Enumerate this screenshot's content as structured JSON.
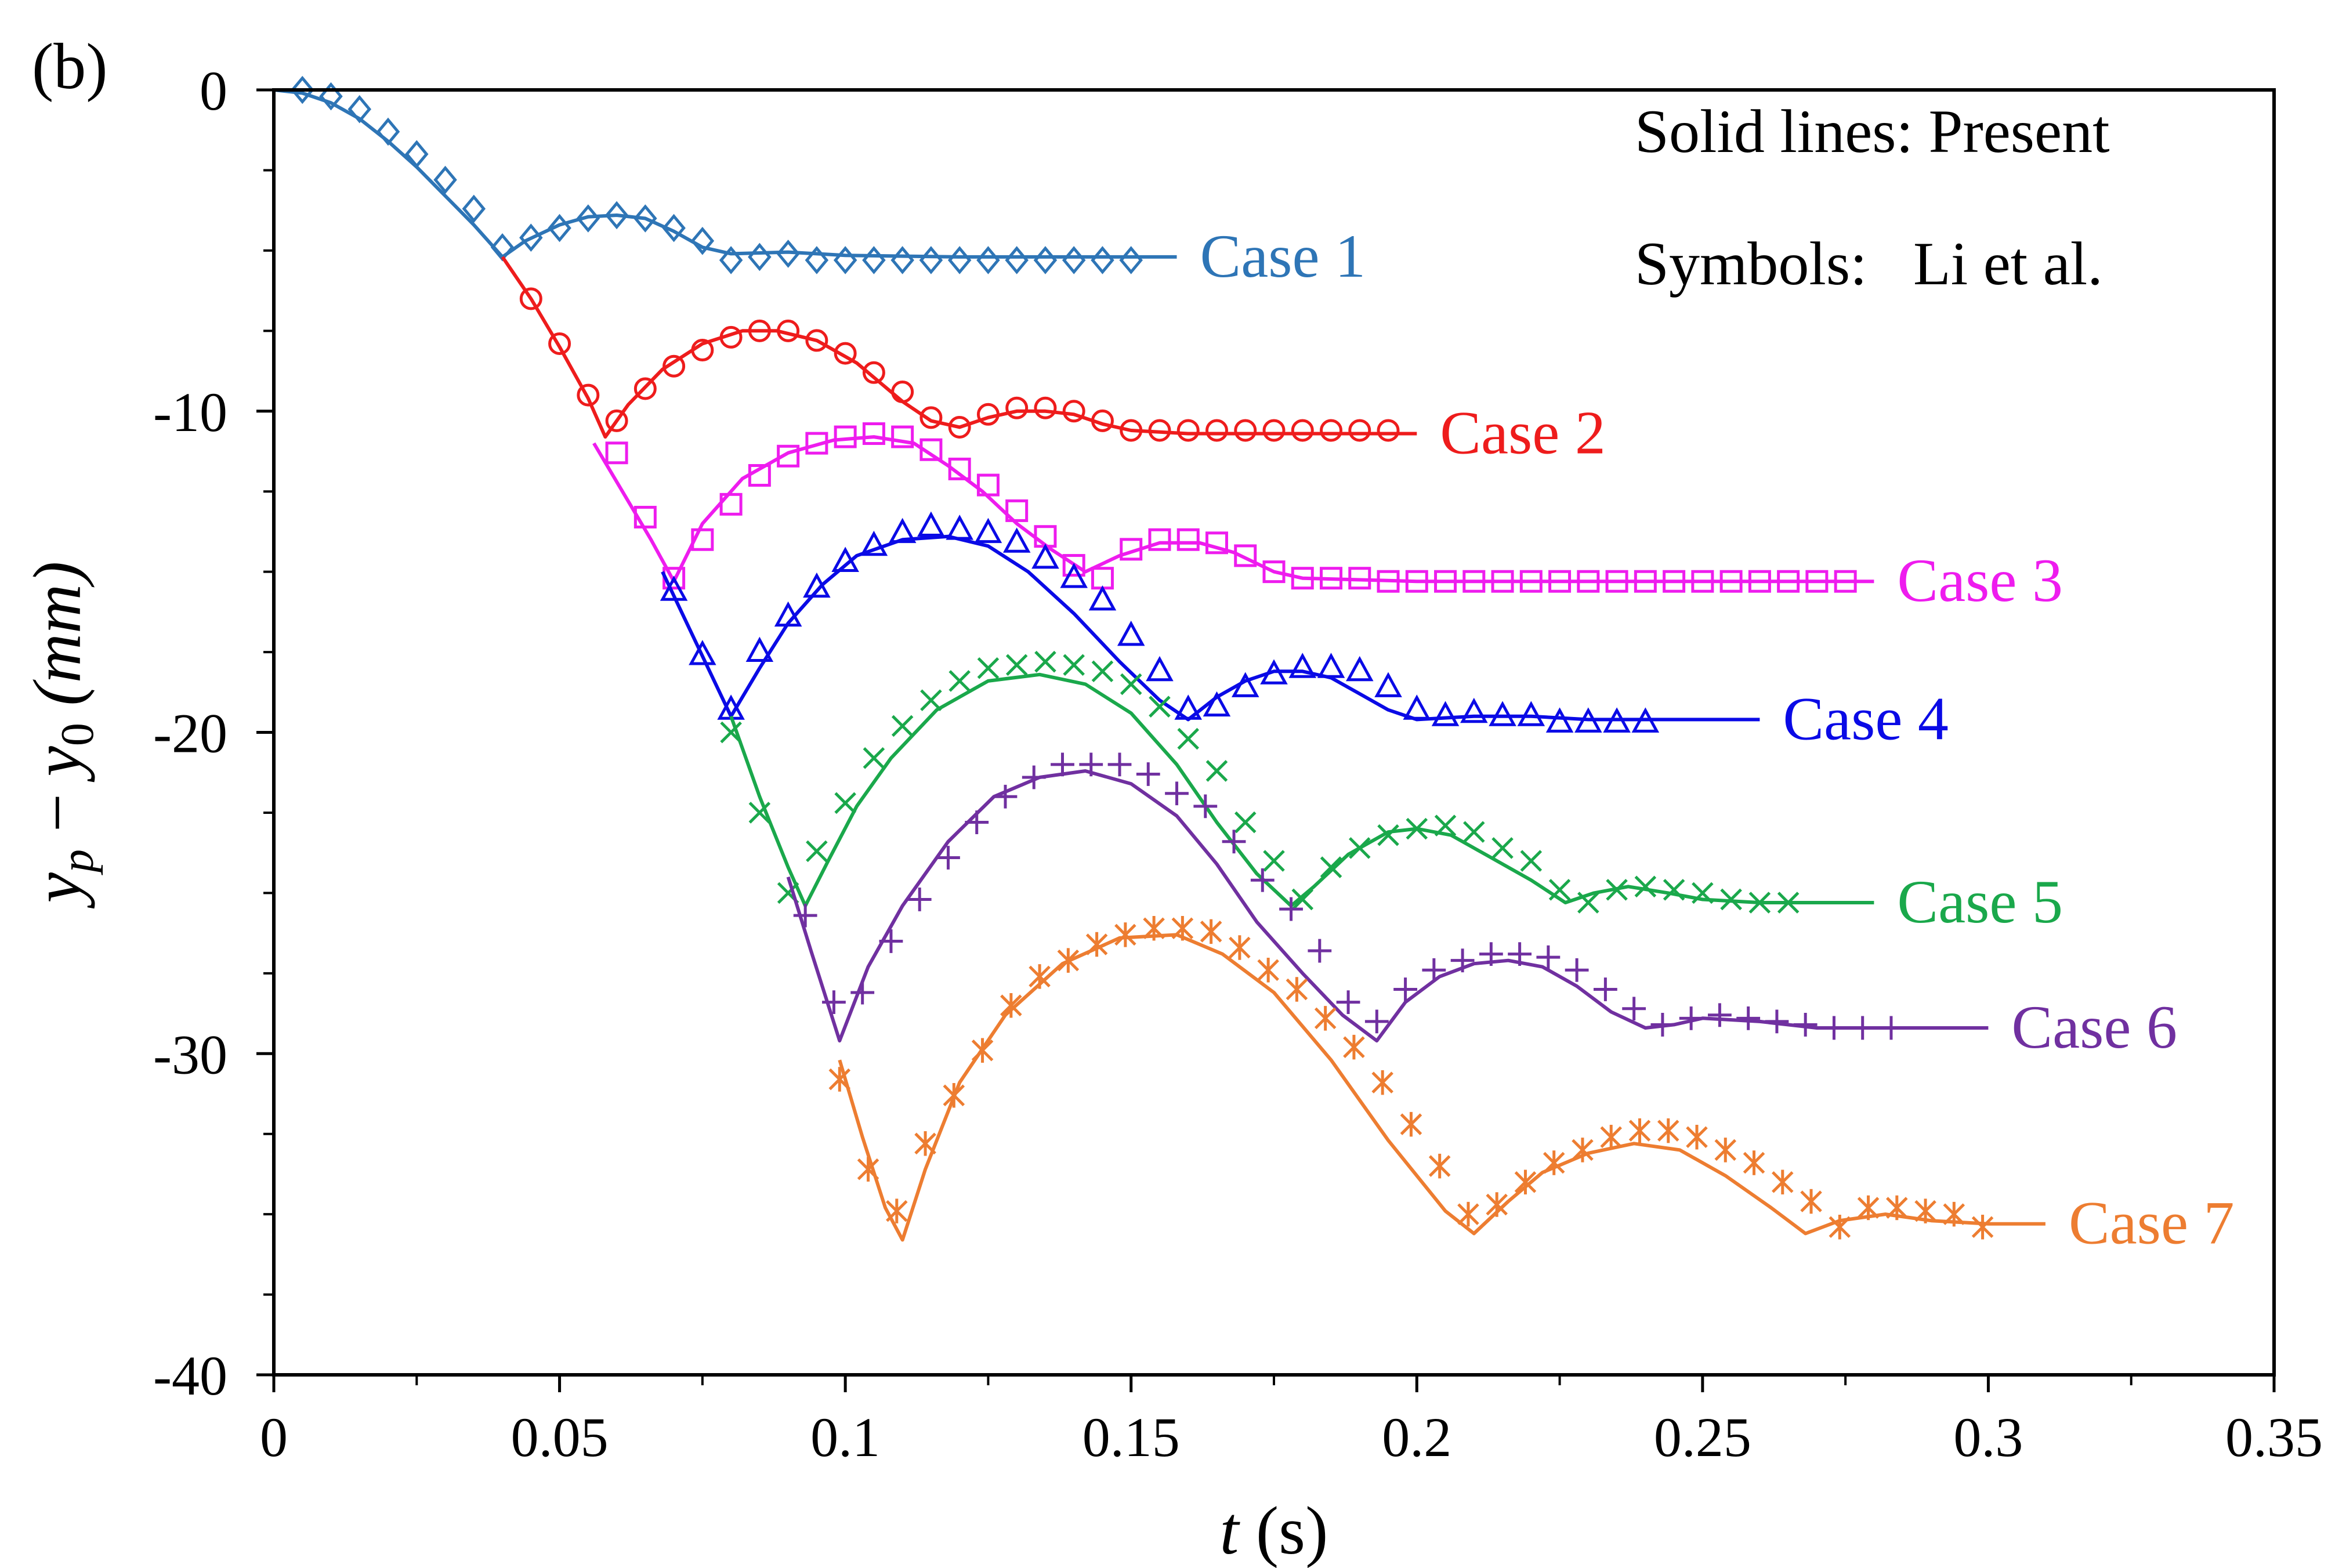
{
  "panel_label": "(b)",
  "annotation": {
    "line1": "Solid lines: Present",
    "line2": "Symbols:   Li et al."
  },
  "chart_data": {
    "type": "line",
    "xlim": [
      0,
      0.35
    ],
    "ylim": [
      -40,
      0
    ],
    "xticks": [
      0,
      0.05,
      0.1,
      0.15,
      0.2,
      0.25,
      0.3,
      0.35
    ],
    "xtick_labels": [
      "0",
      "0.05",
      "0.1",
      "0.15",
      "0.2",
      "0.25",
      "0.3",
      "0.35"
    ],
    "yticks": [
      0,
      -10,
      -20,
      -30,
      -40
    ],
    "ytick_labels": [
      "0",
      "-10",
      "-20",
      "-30",
      "-40"
    ],
    "xlabel": {
      "italic": "t",
      "rest": " (s)"
    },
    "ylabel": {
      "y": "y",
      "sub_p": "p",
      "minus": " − ",
      "y0": "y",
      "sub_0": "0",
      "unit": " (mm)"
    },
    "grid": false,
    "series": [
      {
        "name": "Case 1",
        "color": "#2E75B6",
        "marker": "diamond",
        "line_x": [
          0,
          0.005,
          0.01,
          0.015,
          0.02,
          0.025,
          0.03,
          0.035,
          0.04,
          0.044,
          0.05,
          0.055,
          0.06,
          0.065,
          0.07,
          0.075,
          0.08,
          0.09,
          0.1,
          0.12,
          0.14,
          0.158
        ],
        "line_y": [
          0,
          -0.1,
          -0.4,
          -0.9,
          -1.6,
          -2.4,
          -3.3,
          -4.2,
          -5.2,
          -4.7,
          -4.2,
          -3.95,
          -3.9,
          -4.0,
          -4.4,
          -4.9,
          -5.1,
          -5.05,
          -5.15,
          -5.2,
          -5.2,
          -5.2
        ],
        "marker_x": [
          0.005,
          0.01,
          0.015,
          0.02,
          0.025,
          0.03,
          0.035,
          0.04,
          0.045,
          0.05,
          0.055,
          0.06,
          0.065,
          0.07,
          0.075,
          0.08,
          0.085,
          0.09,
          0.095,
          0.1,
          0.105,
          0.11,
          0.115,
          0.12,
          0.125,
          0.13,
          0.135,
          0.14,
          0.145,
          0.15
        ],
        "marker_y": [
          0,
          -0.2,
          -0.6,
          -1.3,
          -2.0,
          -2.8,
          -3.7,
          -4.9,
          -4.6,
          -4.3,
          -4.0,
          -3.9,
          -4.0,
          -4.3,
          -4.7,
          -5.3,
          -5.2,
          -5.1,
          -5.3,
          -5.3,
          -5.3,
          -5.3,
          -5.3,
          -5.3,
          -5.3,
          -5.3,
          -5.3,
          -5.3,
          -5.3,
          -5.3
        ],
        "label": "Case 1"
      },
      {
        "name": "Case 2",
        "color": "#EE1C1C",
        "marker": "circle",
        "line_x": [
          0.04,
          0.045,
          0.05,
          0.055,
          0.058,
          0.062,
          0.068,
          0.075,
          0.082,
          0.088,
          0.095,
          0.102,
          0.11,
          0.115,
          0.12,
          0.125,
          0.13,
          0.135,
          0.14,
          0.145,
          0.15,
          0.16,
          0.18,
          0.2
        ],
        "line_y": [
          -5.2,
          -6.5,
          -8.0,
          -9.6,
          -10.8,
          -9.8,
          -8.7,
          -7.9,
          -7.5,
          -7.5,
          -7.8,
          -8.5,
          -9.7,
          -10.3,
          -10.5,
          -10.2,
          -10.0,
          -10.0,
          -10.1,
          -10.4,
          -10.6,
          -10.7,
          -10.7,
          -10.7
        ],
        "marker_x": [
          0.045,
          0.05,
          0.055,
          0.06,
          0.065,
          0.07,
          0.075,
          0.08,
          0.085,
          0.09,
          0.095,
          0.1,
          0.105,
          0.11,
          0.115,
          0.12,
          0.125,
          0.13,
          0.135,
          0.14,
          0.145,
          0.15,
          0.155,
          0.16,
          0.165,
          0.17,
          0.175,
          0.18,
          0.185,
          0.19,
          0.195
        ],
        "marker_y": [
          -6.5,
          -7.9,
          -9.5,
          -10.3,
          -9.3,
          -8.6,
          -8.1,
          -7.7,
          -7.5,
          -7.5,
          -7.8,
          -8.2,
          -8.8,
          -9.4,
          -10.2,
          -10.5,
          -10.1,
          -9.9,
          -9.9,
          -10.0,
          -10.3,
          -10.6,
          -10.6,
          -10.6,
          -10.6,
          -10.6,
          -10.6,
          -10.6,
          -10.6,
          -10.6,
          -10.6
        ],
        "label": "Case 2"
      },
      {
        "name": "Case 3",
        "color": "#EE1CEE",
        "marker": "square",
        "line_x": [
          0.056,
          0.062,
          0.066,
          0.07,
          0.075,
          0.082,
          0.09,
          0.098,
          0.105,
          0.112,
          0.118,
          0.124,
          0.13,
          0.136,
          0.142,
          0.148,
          0.155,
          0.162,
          0.168,
          0.175,
          0.18,
          0.2,
          0.22,
          0.24,
          0.26,
          0.28
        ],
        "line_y": [
          -11.0,
          -12.8,
          -14.0,
          -15.3,
          -13.5,
          -12.1,
          -11.3,
          -10.9,
          -10.8,
          -11.0,
          -11.7,
          -12.5,
          -13.5,
          -14.3,
          -15.0,
          -14.5,
          -14.1,
          -14.1,
          -14.4,
          -15.0,
          -15.2,
          -15.3,
          -15.3,
          -15.3,
          -15.3,
          -15.3
        ],
        "marker_x": [
          0.06,
          0.065,
          0.07,
          0.075,
          0.08,
          0.085,
          0.09,
          0.095,
          0.1,
          0.105,
          0.11,
          0.115,
          0.12,
          0.125,
          0.13,
          0.135,
          0.14,
          0.145,
          0.15,
          0.155,
          0.16,
          0.165,
          0.17,
          0.175,
          0.18,
          0.185,
          0.19,
          0.195,
          0.2,
          0.205,
          0.21,
          0.215,
          0.22,
          0.225,
          0.23,
          0.235,
          0.24,
          0.245,
          0.25,
          0.255,
          0.26,
          0.265,
          0.27,
          0.275
        ],
        "marker_y": [
          -11.3,
          -13.3,
          -15.2,
          -14.0,
          -12.9,
          -12.0,
          -11.4,
          -11.0,
          -10.8,
          -10.7,
          -10.8,
          -11.2,
          -11.8,
          -12.3,
          -13.1,
          -13.9,
          -14.8,
          -15.2,
          -14.3,
          -14.0,
          -14.0,
          -14.1,
          -14.5,
          -15.0,
          -15.2,
          -15.2,
          -15.2,
          -15.3,
          -15.3,
          -15.3,
          -15.3,
          -15.3,
          -15.3,
          -15.3,
          -15.3,
          -15.3,
          -15.3,
          -15.3,
          -15.3,
          -15.3,
          -15.3,
          -15.3,
          -15.3,
          -15.3
        ],
        "label": "Case 3"
      },
      {
        "name": "Case 4",
        "color": "#0A0AE6",
        "marker": "triangle",
        "line_x": [
          0.068,
          0.072,
          0.076,
          0.08,
          0.085,
          0.09,
          0.096,
          0.102,
          0.11,
          0.118,
          0.125,
          0.132,
          0.14,
          0.148,
          0.155,
          0.16,
          0.165,
          0.17,
          0.175,
          0.18,
          0.185,
          0.19,
          0.195,
          0.2,
          0.21,
          0.22,
          0.23,
          0.24,
          0.26
        ],
        "line_y": [
          -15.0,
          -16.5,
          -18.0,
          -19.5,
          -18.0,
          -16.6,
          -15.4,
          -14.5,
          -14.0,
          -13.9,
          -14.2,
          -15.0,
          -16.3,
          -17.8,
          -19.0,
          -19.6,
          -18.9,
          -18.4,
          -18.1,
          -18.1,
          -18.3,
          -18.8,
          -19.3,
          -19.6,
          -19.5,
          -19.5,
          -19.6,
          -19.6,
          -19.6
        ],
        "marker_x": [
          0.07,
          0.075,
          0.08,
          0.085,
          0.09,
          0.095,
          0.1,
          0.105,
          0.11,
          0.115,
          0.12,
          0.125,
          0.13,
          0.135,
          0.14,
          0.145,
          0.15,
          0.155,
          0.16,
          0.165,
          0.17,
          0.175,
          0.18,
          0.185,
          0.19,
          0.195,
          0.2,
          0.205,
          0.21,
          0.215,
          0.22,
          0.225,
          0.23,
          0.235,
          0.24
        ],
        "marker_y": [
          -15.6,
          -17.6,
          -19.3,
          -17.5,
          -16.4,
          -15.5,
          -14.7,
          -14.2,
          -13.8,
          -13.6,
          -13.7,
          -13.8,
          -14.1,
          -14.6,
          -15.2,
          -15.9,
          -17.0,
          -18.1,
          -19.3,
          -19.2,
          -18.6,
          -18.2,
          -18.0,
          -18.0,
          -18.1,
          -18.6,
          -19.3,
          -19.5,
          -19.4,
          -19.5,
          -19.5,
          -19.7,
          -19.7,
          -19.7,
          -19.7
        ],
        "label": "Case 4"
      },
      {
        "name": "Case 5",
        "color": "#1AA84B",
        "marker": "x",
        "line_x": [
          0.08,
          0.085,
          0.09,
          0.093,
          0.097,
          0.102,
          0.108,
          0.116,
          0.125,
          0.134,
          0.142,
          0.15,
          0.158,
          0.165,
          0.172,
          0.178,
          0.182,
          0.188,
          0.195,
          0.2,
          0.206,
          0.212,
          0.22,
          0.226,
          0.231,
          0.237,
          0.244,
          0.25,
          0.26,
          0.28
        ],
        "line_y": [
          -19.5,
          -22.0,
          -24.2,
          -25.4,
          -24.0,
          -22.3,
          -20.8,
          -19.3,
          -18.4,
          -18.2,
          -18.5,
          -19.4,
          -21.0,
          -22.8,
          -24.4,
          -25.4,
          -24.8,
          -23.8,
          -23.1,
          -23.0,
          -23.2,
          -23.8,
          -24.6,
          -25.3,
          -25.0,
          -24.8,
          -25.0,
          -25.2,
          -25.3,
          -25.3
        ],
        "marker_x": [
          0.08,
          0.085,
          0.09,
          0.095,
          0.1,
          0.105,
          0.11,
          0.115,
          0.12,
          0.125,
          0.13,
          0.135,
          0.14,
          0.145,
          0.15,
          0.155,
          0.16,
          0.165,
          0.17,
          0.175,
          0.18,
          0.185,
          0.19,
          0.195,
          0.2,
          0.205,
          0.21,
          0.215,
          0.22,
          0.225,
          0.23,
          0.235,
          0.24,
          0.245,
          0.25,
          0.255,
          0.26,
          0.265
        ],
        "marker_y": [
          -20.0,
          -22.5,
          -25.0,
          -23.7,
          -22.2,
          -20.8,
          -19.8,
          -19.0,
          -18.4,
          -18.0,
          -17.9,
          -17.8,
          -17.9,
          -18.1,
          -18.5,
          -19.2,
          -20.2,
          -21.2,
          -22.8,
          -24.0,
          -25.2,
          -24.2,
          -23.6,
          -23.2,
          -23.0,
          -22.9,
          -23.1,
          -23.6,
          -24.0,
          -24.9,
          -25.3,
          -24.9,
          -24.8,
          -24.9,
          -25.0,
          -25.2,
          -25.3,
          -25.3
        ],
        "label": "Case 5"
      },
      {
        "name": "Case 6",
        "color": "#7030A0",
        "marker": "plus",
        "line_x": [
          0.09,
          0.094,
          0.099,
          0.104,
          0.11,
          0.118,
          0.126,
          0.134,
          0.142,
          0.15,
          0.158,
          0.165,
          0.172,
          0.18,
          0.187,
          0.193,
          0.198,
          0.204,
          0.21,
          0.216,
          0.222,
          0.228,
          0.234,
          0.24,
          0.245,
          0.25,
          0.26,
          0.27,
          0.28,
          0.3
        ],
        "line_y": [
          -24.5,
          -26.8,
          -29.6,
          -27.3,
          -25.4,
          -23.4,
          -22.0,
          -21.4,
          -21.2,
          -21.6,
          -22.6,
          -24.1,
          -25.9,
          -27.5,
          -28.8,
          -29.6,
          -28.4,
          -27.6,
          -27.2,
          -27.1,
          -27.3,
          -27.9,
          -28.7,
          -29.2,
          -29.1,
          -28.9,
          -29.0,
          -29.2,
          -29.2,
          -29.2
        ],
        "marker_x": [
          0.093,
          0.098,
          0.103,
          0.108,
          0.113,
          0.118,
          0.123,
          0.128,
          0.133,
          0.138,
          0.143,
          0.148,
          0.153,
          0.158,
          0.163,
          0.168,
          0.173,
          0.178,
          0.183,
          0.188,
          0.193,
          0.198,
          0.203,
          0.208,
          0.213,
          0.218,
          0.223,
          0.228,
          0.233,
          0.238,
          0.243,
          0.248,
          0.253,
          0.258,
          0.263,
          0.268,
          0.273,
          0.278,
          0.283
        ],
        "marker_y": [
          -25.7,
          -28.4,
          -28.1,
          -26.5,
          -25.2,
          -23.9,
          -22.8,
          -22.0,
          -21.4,
          -21.0,
          -21.0,
          -21.0,
          -21.3,
          -21.9,
          -22.3,
          -23.4,
          -24.6,
          -25.5,
          -26.8,
          -28.4,
          -29.0,
          -28.0,
          -27.4,
          -27.1,
          -26.9,
          -26.9,
          -27.0,
          -27.4,
          -28.0,
          -28.6,
          -29.1,
          -28.9,
          -28.8,
          -28.9,
          -29.0,
          -29.1,
          -29.2,
          -29.2,
          -29.2
        ],
        "label": "Case 6"
      },
      {
        "name": "Case 7",
        "color": "#ED7D31",
        "marker": "asterisk",
        "line_x": [
          0.099,
          0.103,
          0.107,
          0.11,
          0.114,
          0.12,
          0.128,
          0.138,
          0.148,
          0.158,
          0.166,
          0.175,
          0.185,
          0.195,
          0.205,
          0.21,
          0.216,
          0.222,
          0.23,
          0.238,
          0.246,
          0.254,
          0.262,
          0.268,
          0.274,
          0.282,
          0.29,
          0.3,
          0.31
        ],
        "line_y": [
          -30.2,
          -32.6,
          -34.8,
          -35.8,
          -33.6,
          -30.9,
          -28.8,
          -27.2,
          -26.4,
          -26.3,
          -26.9,
          -28.1,
          -30.2,
          -32.7,
          -34.9,
          -35.6,
          -34.6,
          -33.7,
          -33.1,
          -32.8,
          -33.0,
          -33.8,
          -34.8,
          -35.6,
          -35.2,
          -35.0,
          -35.2,
          -35.3,
          -35.3
        ],
        "marker_x": [
          0.099,
          0.104,
          0.109,
          0.114,
          0.119,
          0.124,
          0.129,
          0.134,
          0.139,
          0.144,
          0.149,
          0.154,
          0.159,
          0.164,
          0.169,
          0.174,
          0.179,
          0.184,
          0.189,
          0.194,
          0.199,
          0.204,
          0.209,
          0.214,
          0.219,
          0.224,
          0.229,
          0.234,
          0.239,
          0.244,
          0.249,
          0.254,
          0.259,
          0.264,
          0.269,
          0.274,
          0.279,
          0.284,
          0.289,
          0.294,
          0.299
        ],
        "marker_y": [
          -30.8,
          -33.6,
          -34.9,
          -32.8,
          -31.3,
          -29.9,
          -28.5,
          -27.6,
          -27.1,
          -26.6,
          -26.3,
          -26.1,
          -26.1,
          -26.2,
          -26.7,
          -27.4,
          -28.0,
          -28.9,
          -29.8,
          -30.9,
          -32.2,
          -33.5,
          -35.0,
          -34.7,
          -34.0,
          -33.4,
          -33.0,
          -32.6,
          -32.4,
          -32.4,
          -32.6,
          -33.0,
          -33.4,
          -34.0,
          -34.6,
          -35.4,
          -34.8,
          -34.8,
          -34.9,
          -35.0,
          -35.4
        ],
        "label": "Case 7"
      }
    ]
  }
}
